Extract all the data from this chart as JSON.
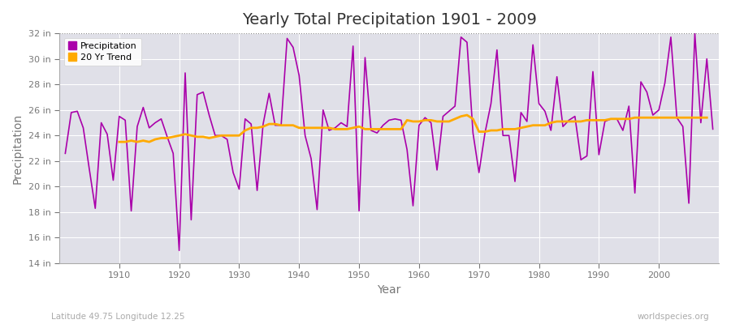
{
  "title": "Yearly Total Precipitation 1901 - 2009",
  "xlabel": "Year",
  "ylabel": "Precipitation",
  "subtitle_left": "Latitude 49.75 Longitude 12.25",
  "subtitle_right": "worldspecies.org",
  "ylim": [
    14,
    32
  ],
  "yticks": [
    14,
    16,
    18,
    20,
    22,
    24,
    26,
    28,
    30,
    32
  ],
  "ytick_labels": [
    "14 in",
    "16 in",
    "18 in",
    "20 in",
    "22 in",
    "24 in",
    "26 in",
    "28 in",
    "30 in",
    "32 in"
  ],
  "fig_bg_color": "#ffffff",
  "plot_bg_color": "#e0e0e8",
  "grid_color": "#ffffff",
  "precip_color": "#aa00aa",
  "trend_color": "#ffaa00",
  "top_line_color": "#555555",
  "tick_color": "#777777",
  "title_color": "#333333",
  "label_color": "#777777",
  "years": [
    1901,
    1902,
    1903,
    1904,
    1905,
    1906,
    1907,
    1908,
    1909,
    1910,
    1911,
    1912,
    1913,
    1914,
    1915,
    1916,
    1917,
    1918,
    1919,
    1920,
    1921,
    1922,
    1923,
    1924,
    1925,
    1926,
    1927,
    1928,
    1929,
    1930,
    1931,
    1932,
    1933,
    1934,
    1935,
    1936,
    1937,
    1938,
    1939,
    1940,
    1941,
    1942,
    1943,
    1944,
    1945,
    1946,
    1947,
    1948,
    1949,
    1950,
    1951,
    1952,
    1953,
    1954,
    1955,
    1956,
    1957,
    1958,
    1959,
    1960,
    1961,
    1962,
    1963,
    1964,
    1965,
    1966,
    1967,
    1968,
    1969,
    1970,
    1971,
    1972,
    1973,
    1974,
    1975,
    1976,
    1977,
    1978,
    1979,
    1980,
    1981,
    1982,
    1983,
    1984,
    1985,
    1986,
    1987,
    1988,
    1989,
    1990,
    1991,
    1992,
    1993,
    1994,
    1995,
    1996,
    1997,
    1998,
    1999,
    2000,
    2001,
    2002,
    2003,
    2004,
    2005,
    2006,
    2007,
    2008,
    2009
  ],
  "precip": [
    22.6,
    25.8,
    25.9,
    24.6,
    21.4,
    18.3,
    25.0,
    24.1,
    20.5,
    25.5,
    25.2,
    18.1,
    24.7,
    26.2,
    24.6,
    25.0,
    25.3,
    23.9,
    22.6,
    15.0,
    28.9,
    17.4,
    27.2,
    27.4,
    25.6,
    24.0,
    24.0,
    23.7,
    21.1,
    19.8,
    25.3,
    24.9,
    19.7,
    24.9,
    27.3,
    24.8,
    24.8,
    31.6,
    30.9,
    28.7,
    24.0,
    22.2,
    18.2,
    26.0,
    24.4,
    24.6,
    25.0,
    24.7,
    31.0,
    18.1,
    30.1,
    24.4,
    24.2,
    24.8,
    25.2,
    25.3,
    25.2,
    22.9,
    18.5,
    24.8,
    25.4,
    25.0,
    21.3,
    25.5,
    25.9,
    26.3,
    31.7,
    31.3,
    24.2,
    21.1,
    24.2,
    26.5,
    30.7,
    24.0,
    24.0,
    20.4,
    25.8,
    25.1,
    31.1,
    26.5,
    25.9,
    24.4,
    28.6,
    24.7,
    25.2,
    25.5,
    22.1,
    22.4,
    29.0,
    22.5,
    25.1,
    25.3,
    25.3,
    24.4,
    26.3,
    19.5,
    28.2,
    27.4,
    25.6,
    26.0,
    28.1,
    31.7,
    25.4,
    24.7,
    18.7,
    32.0,
    25.0,
    30.0,
    24.5
  ],
  "trend": [
    null,
    null,
    null,
    null,
    null,
    null,
    null,
    null,
    null,
    23.5,
    23.5,
    23.6,
    23.5,
    23.6,
    23.5,
    23.7,
    23.8,
    23.8,
    23.9,
    24.0,
    24.1,
    24.0,
    23.9,
    23.9,
    23.8,
    23.9,
    24.0,
    24.0,
    24.0,
    24.0,
    24.4,
    24.6,
    24.6,
    24.7,
    24.9,
    24.9,
    24.8,
    24.8,
    24.8,
    24.6,
    24.6,
    24.6,
    24.6,
    24.6,
    24.6,
    24.5,
    24.5,
    24.5,
    24.6,
    24.7,
    24.5,
    24.5,
    24.5,
    24.5,
    24.5,
    24.5,
    24.5,
    25.2,
    25.1,
    25.1,
    25.2,
    25.2,
    25.1,
    25.1,
    25.1,
    25.3,
    25.5,
    25.6,
    25.3,
    24.3,
    24.3,
    24.4,
    24.4,
    24.5,
    24.5,
    24.5,
    24.6,
    24.7,
    24.8,
    24.8,
    24.8,
    25.0,
    25.1,
    25.1,
    25.1,
    25.1,
    25.1,
    25.2,
    25.2,
    25.2,
    25.2,
    25.3,
    25.3,
    25.3,
    25.3,
    25.4,
    25.4,
    25.4,
    25.4,
    25.4,
    25.4,
    25.4,
    25.4,
    25.4,
    25.4,
    25.4,
    25.4,
    25.4
  ]
}
